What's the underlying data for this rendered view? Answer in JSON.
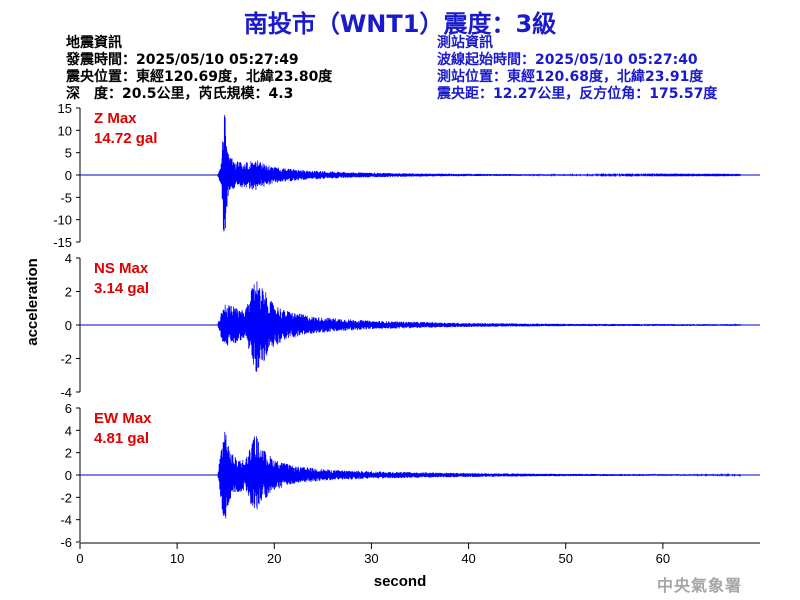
{
  "title": "南投市（WNT1）震度：3級",
  "quake_info": {
    "heading": "地震資訊",
    "time": "發震時間：2025/05/10 05:27:49",
    "epicenter": "震央位置：東經120.69度，北緯23.80度",
    "depth_mag": "深　度：20.5公里，芮氏規模：4.3"
  },
  "station_info": {
    "heading": "測站資訊",
    "wave_start": "波線起始時間：2025/05/10 05:27:40",
    "location": "測站位置：東經120.68度，北緯23.91度",
    "distance": "震央距：12.27公里，反方位角：175.57度"
  },
  "agency": "中央氣象署",
  "colors": {
    "trace": "#0000ff",
    "max_label": "#e00000",
    "title": "#1a1acc"
  },
  "chart_data": {
    "type": "line",
    "xlabel": "second",
    "ylabel": "acceleration",
    "xlim": [
      0,
      70
    ],
    "xticks": [
      0,
      10,
      20,
      30,
      40,
      50,
      60
    ],
    "record_start": 14.2,
    "record_end": 68,
    "panels": [
      {
        "name": "Z",
        "max_label": "Z Max",
        "max_value": "14.72 gal",
        "ylim": [
          -15,
          15
        ],
        "yticks": [
          -15,
          -10,
          -5,
          0,
          5,
          10,
          15
        ],
        "envelope": [
          [
            14.2,
            0.3
          ],
          [
            14.5,
            2
          ],
          [
            14.6,
            5
          ],
          [
            14.75,
            12
          ],
          [
            14.9,
            14.5
          ],
          [
            15.05,
            9
          ],
          [
            15.3,
            4.5
          ],
          [
            16,
            3.2
          ],
          [
            17,
            2.8
          ],
          [
            18.2,
            3.5
          ],
          [
            18.5,
            3
          ],
          [
            20,
            1.8
          ],
          [
            23,
            1.1
          ],
          [
            28,
            0.6
          ],
          [
            35,
            0.35
          ],
          [
            45,
            0.2
          ],
          [
            55,
            0.12
          ],
          [
            68,
            0.08
          ]
        ]
      },
      {
        "name": "NS",
        "max_label": "NS Max",
        "max_value": "3.14 gal",
        "ylim": [
          -4,
          4
        ],
        "yticks": [
          -4,
          -2,
          0,
          2,
          4
        ],
        "envelope": [
          [
            14.2,
            0.1
          ],
          [
            14.6,
            0.9
          ],
          [
            15,
            1.3
          ],
          [
            16,
            1.1
          ],
          [
            17,
            0.8
          ],
          [
            17.5,
            1.8
          ],
          [
            18.1,
            2.9
          ],
          [
            18.6,
            2.6
          ],
          [
            19.5,
            1.5
          ],
          [
            21,
            0.9
          ],
          [
            24,
            0.5
          ],
          [
            30,
            0.25
          ],
          [
            40,
            0.12
          ],
          [
            50,
            0.07
          ],
          [
            68,
            0.05
          ]
        ]
      },
      {
        "name": "EW",
        "max_label": "EW Max",
        "max_value": "4.81 gal",
        "ylim": [
          -6,
          6
        ],
        "yticks": [
          -6,
          -4,
          -2,
          0,
          2,
          4,
          6
        ],
        "envelope": [
          [
            14.2,
            0.2
          ],
          [
            14.6,
            3
          ],
          [
            14.9,
            4.6
          ],
          [
            15.3,
            2.5
          ],
          [
            16,
            1.6
          ],
          [
            17,
            1.4
          ],
          [
            18.1,
            3.8
          ],
          [
            18.6,
            2.5
          ],
          [
            20,
            1.4
          ],
          [
            22,
            0.8
          ],
          [
            26,
            0.45
          ],
          [
            32,
            0.3
          ],
          [
            40,
            0.18
          ],
          [
            50,
            0.1
          ],
          [
            68,
            0.06
          ]
        ]
      }
    ]
  }
}
